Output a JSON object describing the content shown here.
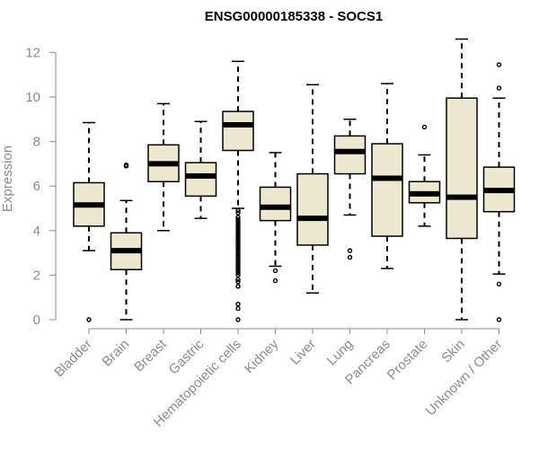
{
  "chart_data": {
    "type": "boxplot",
    "title": "ENSG00000185338 - SOCS1",
    "xlabel": "",
    "ylabel": "Expression",
    "ylim": [
      0,
      12.5
    ],
    "yticks": [
      0,
      2,
      4,
      6,
      8,
      10,
      12
    ],
    "box_color": "#eee8d0",
    "categories": [
      "Bladder",
      "Brain",
      "Breast",
      "Gastric",
      "Hematopoietic cells",
      "Kidney",
      "Liver",
      "Lung",
      "Pancreas",
      "Prostate",
      "Skin",
      "Unknown / Other"
    ],
    "boxes": [
      {
        "category": "Bladder",
        "whisker_low": 3.1,
        "q1": 4.2,
        "median": 5.15,
        "q3": 6.15,
        "whisker_high": 8.85,
        "outliers": [
          0.0
        ]
      },
      {
        "category": "Brain",
        "whisker_low": 0.0,
        "q1": 2.25,
        "median": 3.1,
        "q3": 3.9,
        "whisker_high": 5.35,
        "outliers": [
          6.9,
          6.95
        ]
      },
      {
        "category": "Breast",
        "whisker_low": 4.0,
        "q1": 6.2,
        "median": 7.0,
        "q3": 7.85,
        "whisker_high": 9.7,
        "outliers": []
      },
      {
        "category": "Gastric",
        "whisker_low": 4.55,
        "q1": 5.55,
        "median": 6.45,
        "q3": 7.05,
        "whisker_high": 8.9,
        "outliers": []
      },
      {
        "category": "Hematopoietic cells",
        "whisker_low": 5.0,
        "q1": 7.6,
        "median": 8.75,
        "q3": 9.35,
        "whisker_high": 11.6,
        "outliers": [
          4.9,
          4.8,
          4.6,
          4.5,
          4.4,
          4.3,
          4.2,
          4.1,
          4.0,
          3.9,
          3.8,
          3.7,
          3.6,
          3.5,
          3.4,
          3.3,
          3.2,
          3.1,
          3.0,
          2.9,
          2.8,
          2.7,
          2.6,
          2.5,
          2.4,
          2.3,
          2.2,
          2.1,
          2.0,
          1.8,
          1.7,
          1.5,
          0.7,
          0.5,
          0.0
        ]
      },
      {
        "category": "Kidney",
        "whisker_low": 2.4,
        "q1": 4.45,
        "median": 5.05,
        "q3": 5.95,
        "whisker_high": 7.5,
        "outliers": [
          2.2,
          1.75
        ]
      },
      {
        "category": "Liver",
        "whisker_low": 1.2,
        "q1": 3.35,
        "median": 4.55,
        "q3": 6.55,
        "whisker_high": 10.55,
        "outliers": []
      },
      {
        "category": "Lung",
        "whisker_low": 4.7,
        "q1": 6.55,
        "median": 7.55,
        "q3": 8.25,
        "whisker_high": 9.0,
        "outliers": [
          3.1,
          2.8
        ]
      },
      {
        "category": "Pancreas",
        "whisker_low": 2.3,
        "q1": 3.75,
        "median": 6.35,
        "q3": 7.9,
        "whisker_high": 10.6,
        "outliers": []
      },
      {
        "category": "Prostate",
        "whisker_low": 4.2,
        "q1": 5.25,
        "median": 5.65,
        "q3": 6.2,
        "whisker_high": 7.4,
        "outliers": [
          8.65
        ]
      },
      {
        "category": "Skin",
        "whisker_low": 0.0,
        "q1": 3.65,
        "median": 5.5,
        "q3": 9.95,
        "whisker_high": 12.6,
        "outliers": []
      },
      {
        "category": "Unknown / Other",
        "whisker_low": 2.05,
        "q1": 4.85,
        "median": 5.8,
        "q3": 6.85,
        "whisker_high": 9.95,
        "outliers": [
          1.6,
          0.0,
          10.4,
          11.45
        ]
      }
    ]
  }
}
